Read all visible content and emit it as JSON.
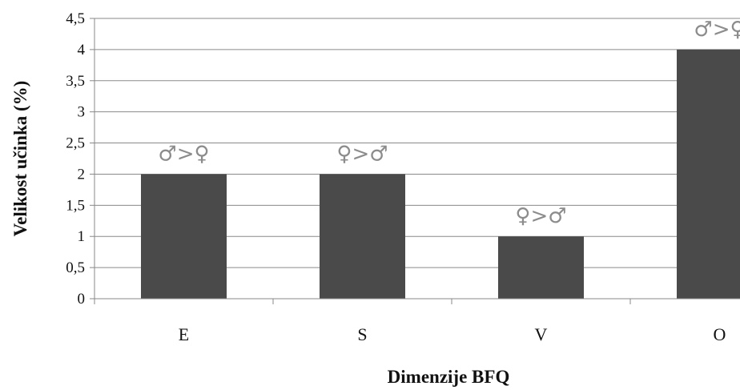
{
  "chart_data": {
    "type": "bar",
    "title": "",
    "xlabel": "Dimenzije BFQ",
    "ylabel": "Velikost učinka (%)",
    "ylim": [
      0,
      4.5
    ],
    "yticks": [
      0,
      0.5,
      1,
      1.5,
      2,
      2.5,
      3,
      3.5,
      4,
      4.5
    ],
    "ytick_labels": [
      "0",
      "0,5",
      "1",
      "1,5",
      "2",
      "2,5",
      "3",
      "3,5",
      "4",
      "4,5"
    ],
    "categories": [
      "E",
      "S",
      "V",
      "O"
    ],
    "values": [
      2,
      2,
      1,
      4
    ],
    "annotations": [
      "♂>♀",
      "♀>♂",
      "♀>♂",
      "♂>♀"
    ],
    "grid": true,
    "legend": "none",
    "bar_color": "#4a4a4a",
    "annotation_color": "#8c8c8c"
  }
}
